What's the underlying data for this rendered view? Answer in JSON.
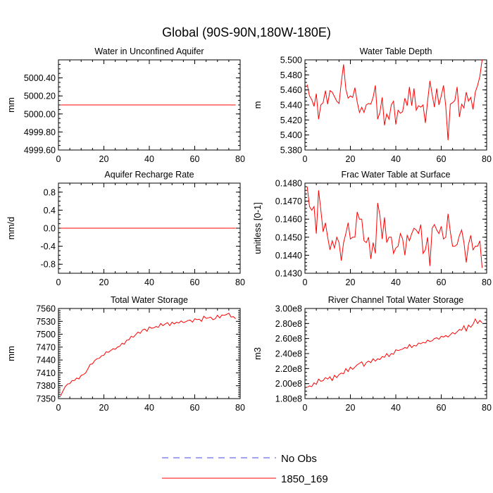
{
  "figure_title": "Global (90S-90N,180W-180E)",
  "legend": [
    {
      "label": "No Obs",
      "color": "#4a4ad8",
      "dashed": true
    },
    {
      "label": "1850_169",
      "color": "#ff0000",
      "dashed": false
    }
  ],
  "chart_data": [
    {
      "type": "line",
      "title": "Water in Unconfined Aquifer",
      "ylabel": "mm",
      "xlim": [
        0,
        80
      ],
      "xticks": [
        0,
        20,
        40,
        60,
        80
      ],
      "ylim": [
        4999.6,
        5000.6
      ],
      "yticks": [
        4999.6,
        4999.8,
        5000.0,
        5000.2,
        5000.4
      ],
      "ytick_labels": [
        "4999.60",
        "4999.80",
        "5000.00",
        "5000.20",
        "5000.40"
      ],
      "yminor": 0.05,
      "x_start": 1,
      "series": [
        {
          "name": "1850_169",
          "color": "#ff0000",
          "constant": 5000.1,
          "n": 78
        }
      ]
    },
    {
      "type": "line",
      "title": "Water Table Depth",
      "ylabel": "m",
      "xlim": [
        0,
        80
      ],
      "xticks": [
        0,
        20,
        40,
        60,
        80
      ],
      "ylim": [
        5.38,
        5.5
      ],
      "yticks": [
        5.38,
        5.4,
        5.42,
        5.44,
        5.46,
        5.48,
        5.5
      ],
      "ytick_labels": [
        "5.380",
        "5.400",
        "5.420",
        "5.440",
        "5.460",
        "5.480",
        "5.500"
      ],
      "yminor": 0.005,
      "x_start": 1,
      "series": [
        {
          "name": "1850_169",
          "color": "#ff0000",
          "values": [
            5.467,
            5.452,
            5.447,
            5.438,
            5.455,
            5.421,
            5.44,
            5.443,
            5.459,
            5.441,
            5.459,
            5.457,
            5.451,
            5.445,
            5.442,
            5.47,
            5.494,
            5.461,
            5.449,
            5.452,
            5.45,
            5.463,
            5.444,
            5.43,
            5.437,
            5.43,
            5.44,
            5.442,
            5.441,
            5.45,
            5.466,
            5.421,
            5.43,
            5.45,
            5.413,
            5.428,
            5.421,
            5.44,
            5.445,
            5.414,
            5.433,
            5.429,
            5.431,
            5.449,
            5.439,
            5.464,
            5.439,
            5.462,
            5.433,
            5.439,
            5.437,
            5.44,
            5.416,
            5.445,
            5.472,
            5.454,
            5.437,
            5.462,
            5.44,
            5.452,
            5.466,
            5.438,
            5.393,
            5.441,
            5.443,
            5.446,
            5.464,
            5.424,
            5.441,
            5.436,
            5.457,
            5.445,
            5.45,
            5.434,
            5.457,
            5.466,
            5.478,
            5.5
          ]
        }
      ]
    },
    {
      "type": "line",
      "title": "Aquifer Recharge Rate",
      "ylabel": "mm/d",
      "xlim": [
        0,
        80
      ],
      "xticks": [
        0,
        20,
        40,
        60,
        80
      ],
      "ylim": [
        -1.0,
        1.0
      ],
      "yticks": [
        -0.8,
        -0.4,
        0.0,
        0.4,
        0.8
      ],
      "ytick_labels": [
        "-0.8",
        "-0.4",
        "0.0",
        "0.4",
        "0.8"
      ],
      "yminor": 0.1,
      "x_start": 1,
      "series": [
        {
          "name": "1850_169",
          "color": "#ff0000",
          "constant": 0.0,
          "n": 78
        }
      ]
    },
    {
      "type": "line",
      "title": "Frac Water Table at Surface",
      "ylabel": "unitless [0-1]",
      "xlim": [
        0,
        80
      ],
      "xticks": [
        0,
        20,
        40,
        60,
        80
      ],
      "ylim": [
        0.143,
        0.148
      ],
      "yticks": [
        0.143,
        0.144,
        0.145,
        0.146,
        0.147,
        0.148
      ],
      "ytick_labels": [
        "0.1430",
        "0.1440",
        "0.1450",
        "0.1460",
        "0.1470",
        "0.1480"
      ],
      "yminor": 0.0002,
      "x_start": 1,
      "series": [
        {
          "name": "1850_169",
          "color": "#ff0000",
          "values": [
            0.1478,
            0.1467,
            0.1465,
            0.1467,
            0.1452,
            0.1476,
            0.1465,
            0.1453,
            0.1458,
            0.145,
            0.1443,
            0.1448,
            0.1444,
            0.145,
            0.1447,
            0.1437,
            0.1447,
            0.1452,
            0.1458,
            0.1449,
            0.145,
            0.145,
            0.1464,
            0.146,
            0.146,
            0.1448,
            0.1447,
            0.145,
            0.1438,
            0.1447,
            0.1441,
            0.1469,
            0.1462,
            0.1449,
            0.1461,
            0.1447,
            0.145,
            0.145,
            0.1441,
            0.1444,
            0.1445,
            0.1452,
            0.1449,
            0.144,
            0.1451,
            0.1448,
            0.1452,
            0.1455,
            0.1454,
            0.1452,
            0.1457,
            0.1441,
            0.1443,
            0.145,
            0.1434,
            0.1455,
            0.1457,
            0.1454,
            0.1452,
            0.1456,
            0.1449,
            0.145,
            0.1463,
            0.1453,
            0.1445,
            0.1445,
            0.1446,
            0.1451,
            0.1454,
            0.1447,
            0.1436,
            0.1446,
            0.1451,
            0.1443,
            0.1445,
            0.1445,
            0.1448,
            0.1433
          ]
        }
      ]
    },
    {
      "type": "line",
      "title": "Total Water Storage",
      "ylabel": "mm",
      "xlim": [
        0,
        80
      ],
      "xticks": [
        0,
        20,
        40,
        60,
        80
      ],
      "ylim": [
        7350,
        7560
      ],
      "yticks": [
        7350,
        7380,
        7410,
        7440,
        7470,
        7500,
        7530,
        7560
      ],
      "ytick_labels": [
        "7350",
        "7380",
        "7410",
        "7440",
        "7470",
        "7500",
        "7530",
        "7560"
      ],
      "yminor": 5,
      "x_start": 1,
      "series": [
        {
          "name": "1850_169",
          "color": "#ff0000",
          "values": [
            7357,
            7368,
            7378,
            7384,
            7385,
            7392,
            7392,
            7398,
            7396,
            7404,
            7406,
            7410,
            7420,
            7430,
            7431,
            7439,
            7443,
            7444,
            7450,
            7451,
            7459,
            7458,
            7462,
            7466,
            7465,
            7470,
            7472,
            7479,
            7477,
            7486,
            7487,
            7495,
            7493,
            7499,
            7505,
            7502,
            7510,
            7512,
            7507,
            7517,
            7514,
            7515,
            7518,
            7516,
            7525,
            7520,
            7524,
            7527,
            7520,
            7528,
            7524,
            7528,
            7526,
            7531,
            7527,
            7529,
            7532,
            7533,
            7528,
            7536,
            7534,
            7535,
            7530,
            7542,
            7537,
            7538,
            7540,
            7534,
            7536,
            7544,
            7538,
            7545,
            7544,
            7546,
            7549,
            7540,
            7541,
            7536
          ]
        }
      ]
    },
    {
      "type": "line",
      "title": "River Channel Total Water Storage",
      "ylabel": "m3",
      "xlim": [
        0,
        80
      ],
      "xticks": [
        0,
        20,
        40,
        60,
        80
      ],
      "ylim": [
        180000000.0,
        300000000.0
      ],
      "yticks": [
        180000000.0,
        200000000.0,
        220000000.0,
        240000000.0,
        260000000.0,
        280000000.0,
        300000000.0
      ],
      "ytick_labels": [
        "1.80e8",
        "2.00e8",
        "2.20e8",
        "2.40e8",
        "2.60e8",
        "2.80e8",
        "3.00e8"
      ],
      "yminor": 5000000.0,
      "x_start": 1,
      "series": [
        {
          "name": "1850_169",
          "color": "#ff0000",
          "values": [
            195000000.0,
            197000000.0,
            196000000.0,
            201000000.0,
            199000000.0,
            206000000.0,
            203000000.0,
            204000000.0,
            208000000.0,
            206000000.0,
            209000000.0,
            204000000.0,
            211000000.0,
            208000000.0,
            212000000.0,
            214000000.0,
            213000000.0,
            220000000.0,
            216000000.0,
            222000000.0,
            219000000.0,
            222000000.0,
            225000000.0,
            227000000.0,
            229000000.0,
            223000000.0,
            228000000.0,
            230000000.0,
            228000000.0,
            233000000.0,
            230000000.0,
            233000000.0,
            232000000.0,
            236000000.0,
            235000000.0,
            240000000.0,
            236000000.0,
            240000000.0,
            239000000.0,
            245000000.0,
            244000000.0,
            245000000.0,
            246000000.0,
            248000000.0,
            247000000.0,
            252000000.0,
            248000000.0,
            251000000.0,
            250000000.0,
            254000000.0,
            253000000.0,
            255000000.0,
            254000000.0,
            258000000.0,
            256000000.0,
            257000000.0,
            260000000.0,
            261000000.0,
            259000000.0,
            263000000.0,
            262000000.0,
            264000000.0,
            262000000.0,
            265000000.0,
            268000000.0,
            266000000.0,
            269000000.0,
            272000000.0,
            271000000.0,
            277000000.0,
            270000000.0,
            278000000.0,
            275000000.0,
            279000000.0,
            286000000.0,
            280000000.0,
            284000000.0,
            281000000.0
          ]
        }
      ]
    }
  ]
}
